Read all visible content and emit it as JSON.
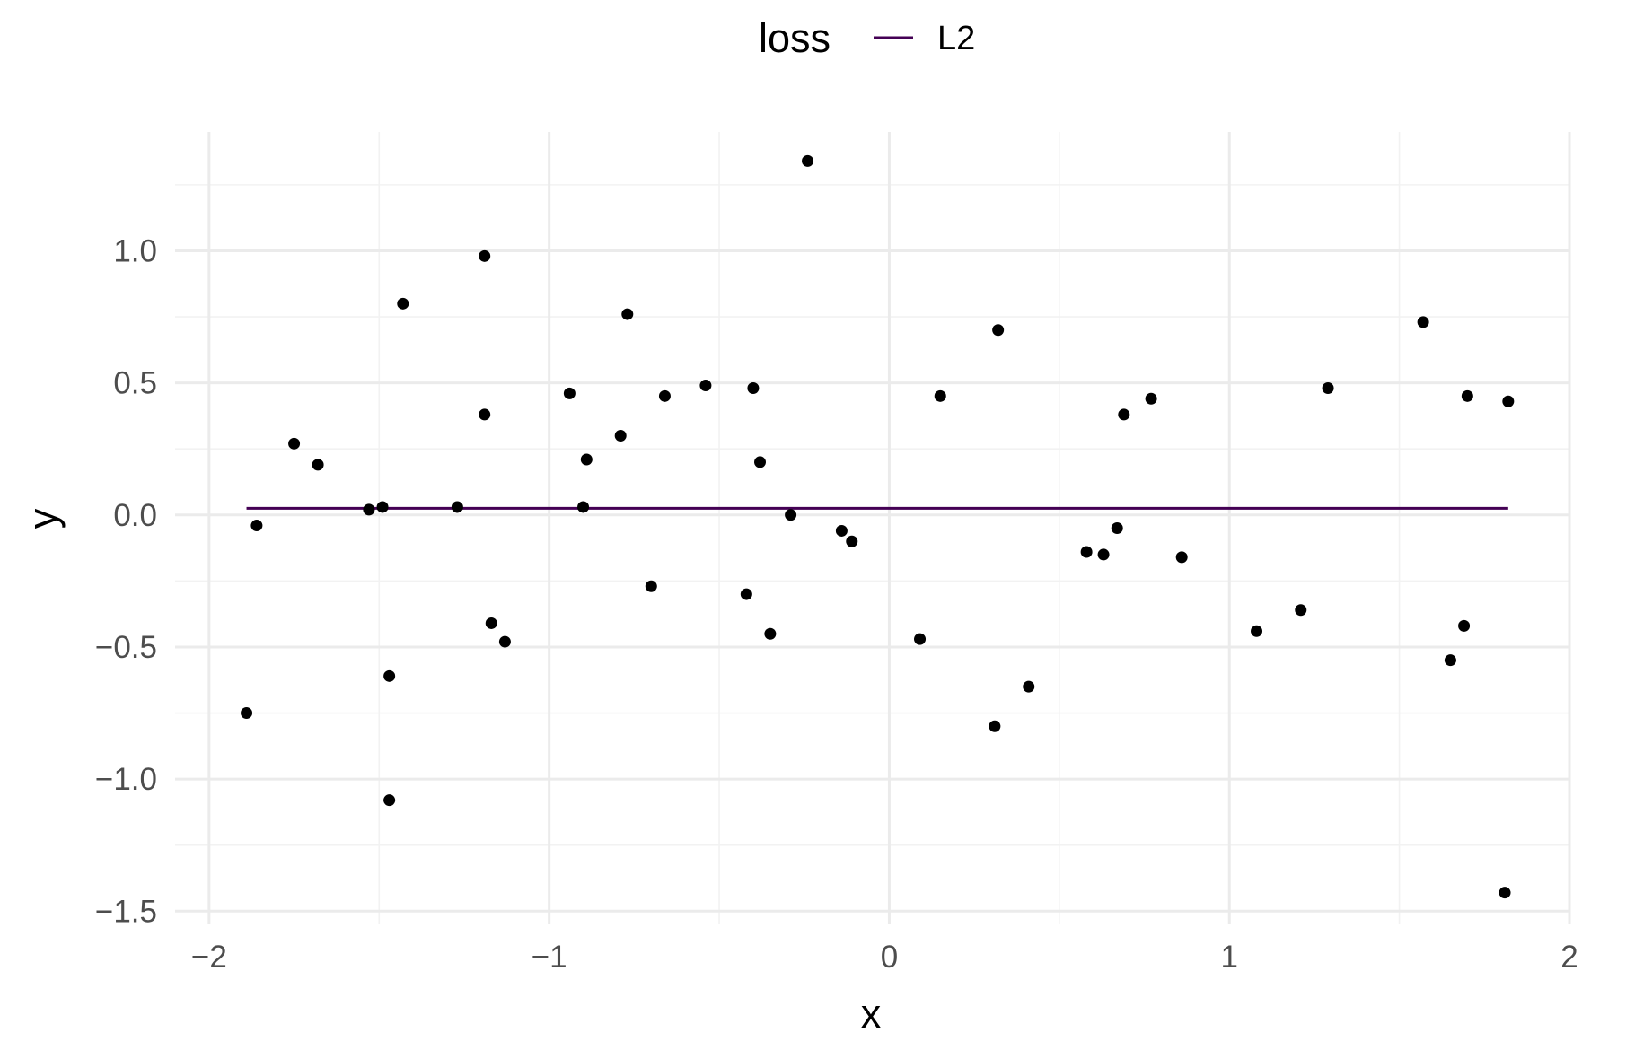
{
  "chart_data": {
    "type": "scatter",
    "xlabel": "x",
    "ylabel": "y",
    "xlim": [
      -2.1,
      2.0
    ],
    "ylim": [
      -1.55,
      1.45
    ],
    "x_ticks": [
      -2,
      -1,
      0,
      1,
      2
    ],
    "x_tick_labels": [
      "−2",
      "−1",
      "0",
      "1",
      "2"
    ],
    "y_ticks": [
      -1.5,
      -1.0,
      -0.5,
      0.0,
      0.5,
      1.0
    ],
    "y_tick_labels": [
      "−1.5",
      "−1.0",
      "−0.5",
      "0.0",
      "0.5",
      "1.0"
    ],
    "grid": true,
    "legend": {
      "title": "loss",
      "position": "top",
      "entries": [
        {
          "label": "L2",
          "color": "#440154"
        }
      ]
    },
    "point_color": "#000000",
    "points": [
      {
        "x": -1.89,
        "y": -0.75
      },
      {
        "x": -1.86,
        "y": -0.04
      },
      {
        "x": -1.75,
        "y": 0.27
      },
      {
        "x": -1.68,
        "y": 0.19
      },
      {
        "x": -1.53,
        "y": 0.02
      },
      {
        "x": -1.49,
        "y": 0.03
      },
      {
        "x": -1.47,
        "y": -0.61
      },
      {
        "x": -1.47,
        "y": -1.08
      },
      {
        "x": -1.43,
        "y": 0.8
      },
      {
        "x": -1.27,
        "y": 0.03
      },
      {
        "x": -1.19,
        "y": 0.98
      },
      {
        "x": -1.19,
        "y": 0.38
      },
      {
        "x": -1.17,
        "y": -0.41
      },
      {
        "x": -1.13,
        "y": -0.48
      },
      {
        "x": -0.94,
        "y": 0.46
      },
      {
        "x": -0.9,
        "y": 0.03
      },
      {
        "x": -0.89,
        "y": 0.21
      },
      {
        "x": -0.79,
        "y": 0.3
      },
      {
        "x": -0.77,
        "y": 0.76
      },
      {
        "x": -0.7,
        "y": -0.27
      },
      {
        "x": -0.66,
        "y": 0.45
      },
      {
        "x": -0.54,
        "y": 0.49
      },
      {
        "x": -0.42,
        "y": -0.3
      },
      {
        "x": -0.4,
        "y": 0.48
      },
      {
        "x": -0.38,
        "y": 0.2
      },
      {
        "x": -0.35,
        "y": -0.45
      },
      {
        "x": -0.29,
        "y": 0.0
      },
      {
        "x": -0.24,
        "y": 1.34
      },
      {
        "x": -0.14,
        "y": -0.06
      },
      {
        "x": -0.11,
        "y": -0.1
      },
      {
        "x": 0.09,
        "y": -0.47
      },
      {
        "x": 0.15,
        "y": 0.45
      },
      {
        "x": 0.31,
        "y": -0.8
      },
      {
        "x": 0.32,
        "y": 0.7
      },
      {
        "x": 0.41,
        "y": -0.65
      },
      {
        "x": 0.58,
        "y": -0.14
      },
      {
        "x": 0.63,
        "y": -0.15
      },
      {
        "x": 0.67,
        "y": -0.05
      },
      {
        "x": 0.69,
        "y": 0.38
      },
      {
        "x": 0.77,
        "y": 0.44
      },
      {
        "x": 0.86,
        "y": -0.16
      },
      {
        "x": 1.08,
        "y": -0.44
      },
      {
        "x": 1.21,
        "y": -0.36
      },
      {
        "x": 1.29,
        "y": 0.48
      },
      {
        "x": 1.57,
        "y": 0.73
      },
      {
        "x": 1.65,
        "y": -0.55
      },
      {
        "x": 1.69,
        "y": -0.42
      },
      {
        "x": 1.7,
        "y": 0.45
      },
      {
        "x": 1.81,
        "y": -1.43
      },
      {
        "x": 1.82,
        "y": 0.43
      }
    ],
    "series": [
      {
        "name": "L2",
        "type": "line",
        "color": "#440154",
        "x": [
          -1.89,
          1.82
        ],
        "y": [
          0.025,
          0.025
        ]
      }
    ]
  }
}
